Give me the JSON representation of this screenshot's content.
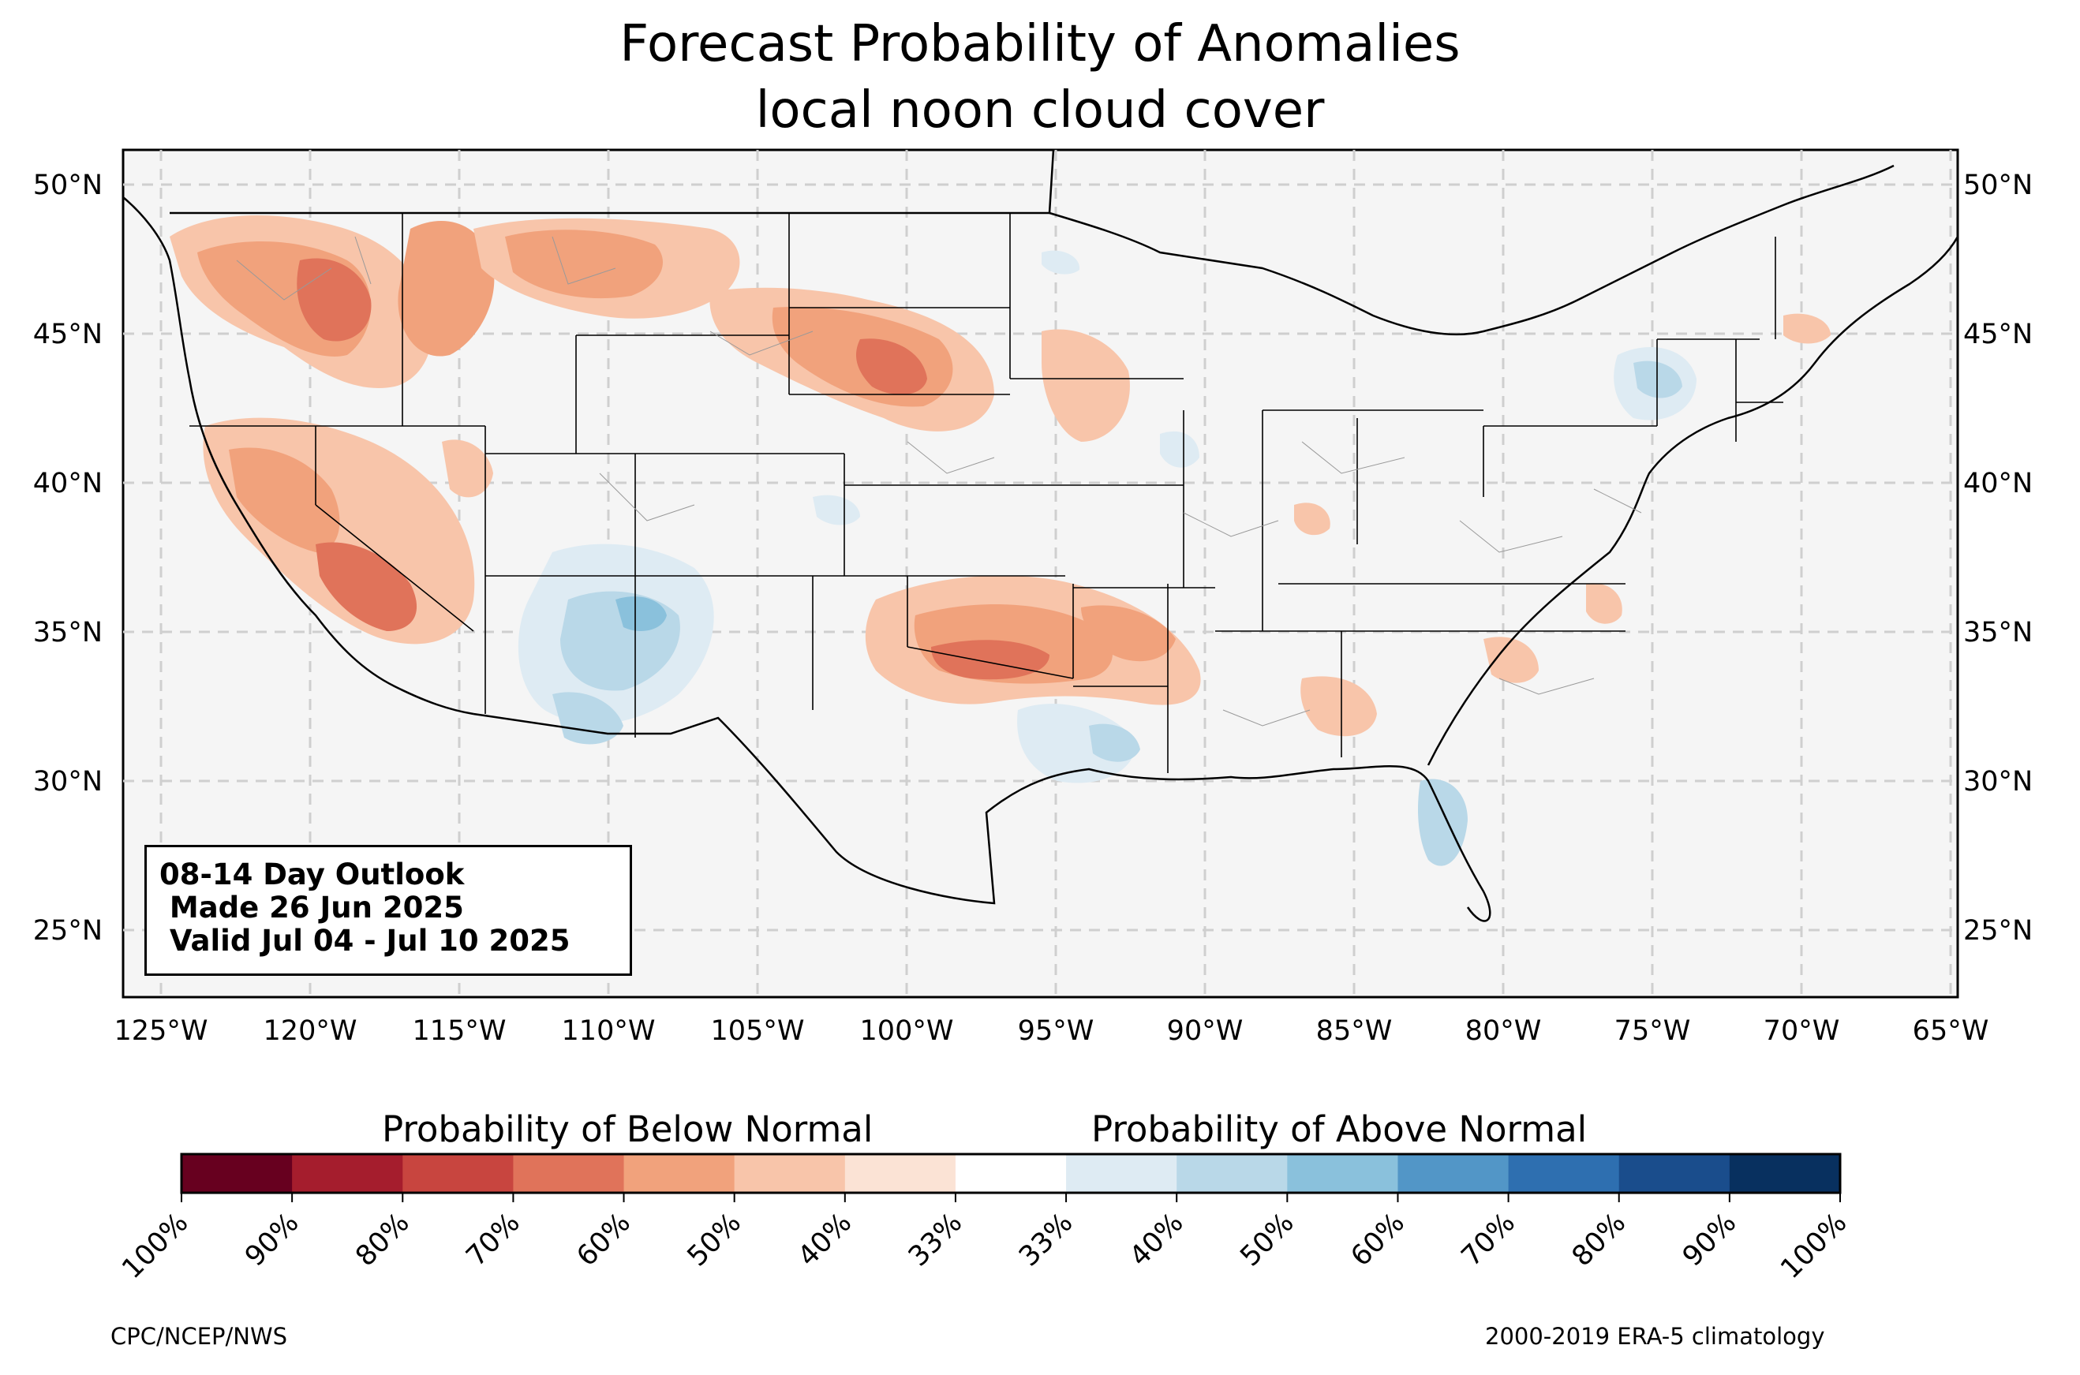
{
  "title": "Forecast Probability of Anomalies",
  "subtitle": "local noon cloud cover",
  "info_box": {
    "line1": "08-14 Day Outlook",
    "line2": " Made 26 Jun 2025",
    "line3": " Valid Jul 04 - Jul 10 2025"
  },
  "lat_labels": [
    "50°N",
    "45°N",
    "40°N",
    "35°N",
    "30°N",
    "25°N"
  ],
  "lon_labels": [
    "125°W",
    "120°W",
    "115°W",
    "110°W",
    "105°W",
    "100°W",
    "95°W",
    "90°W",
    "85°W",
    "80°W",
    "75°W",
    "70°W",
    "65°W"
  ],
  "legend": {
    "below_label": "Probability of Below Normal",
    "above_label": "Probability of Above Normal",
    "ticks": [
      "100%",
      "90%",
      "80%",
      "70%",
      "60%",
      "50%",
      "40%",
      "33%",
      "33%",
      "40%",
      "50%",
      "60%",
      "70%",
      "80%",
      "90%",
      "100%"
    ],
    "colors": [
      "#67001f",
      "#a51d2d",
      "#c8453f",
      "#e0735a",
      "#f1a27c",
      "#f8c5aa",
      "#fbe3d5",
      "#ffffff",
      "#deebf3",
      "#b9d8e8",
      "#8ac1dc",
      "#5296c7",
      "#2e6fb0",
      "#1a4d8c",
      "#08305f"
    ]
  },
  "footer_left": "CPC/NCEP/NWS",
  "footer_right": "2000-2019 ERA-5 climatology",
  "colors": {
    "land": "#f5f5f5",
    "ocean": "#f5f5f5",
    "grid": "#cfcfcf",
    "border": "#000000"
  }
}
